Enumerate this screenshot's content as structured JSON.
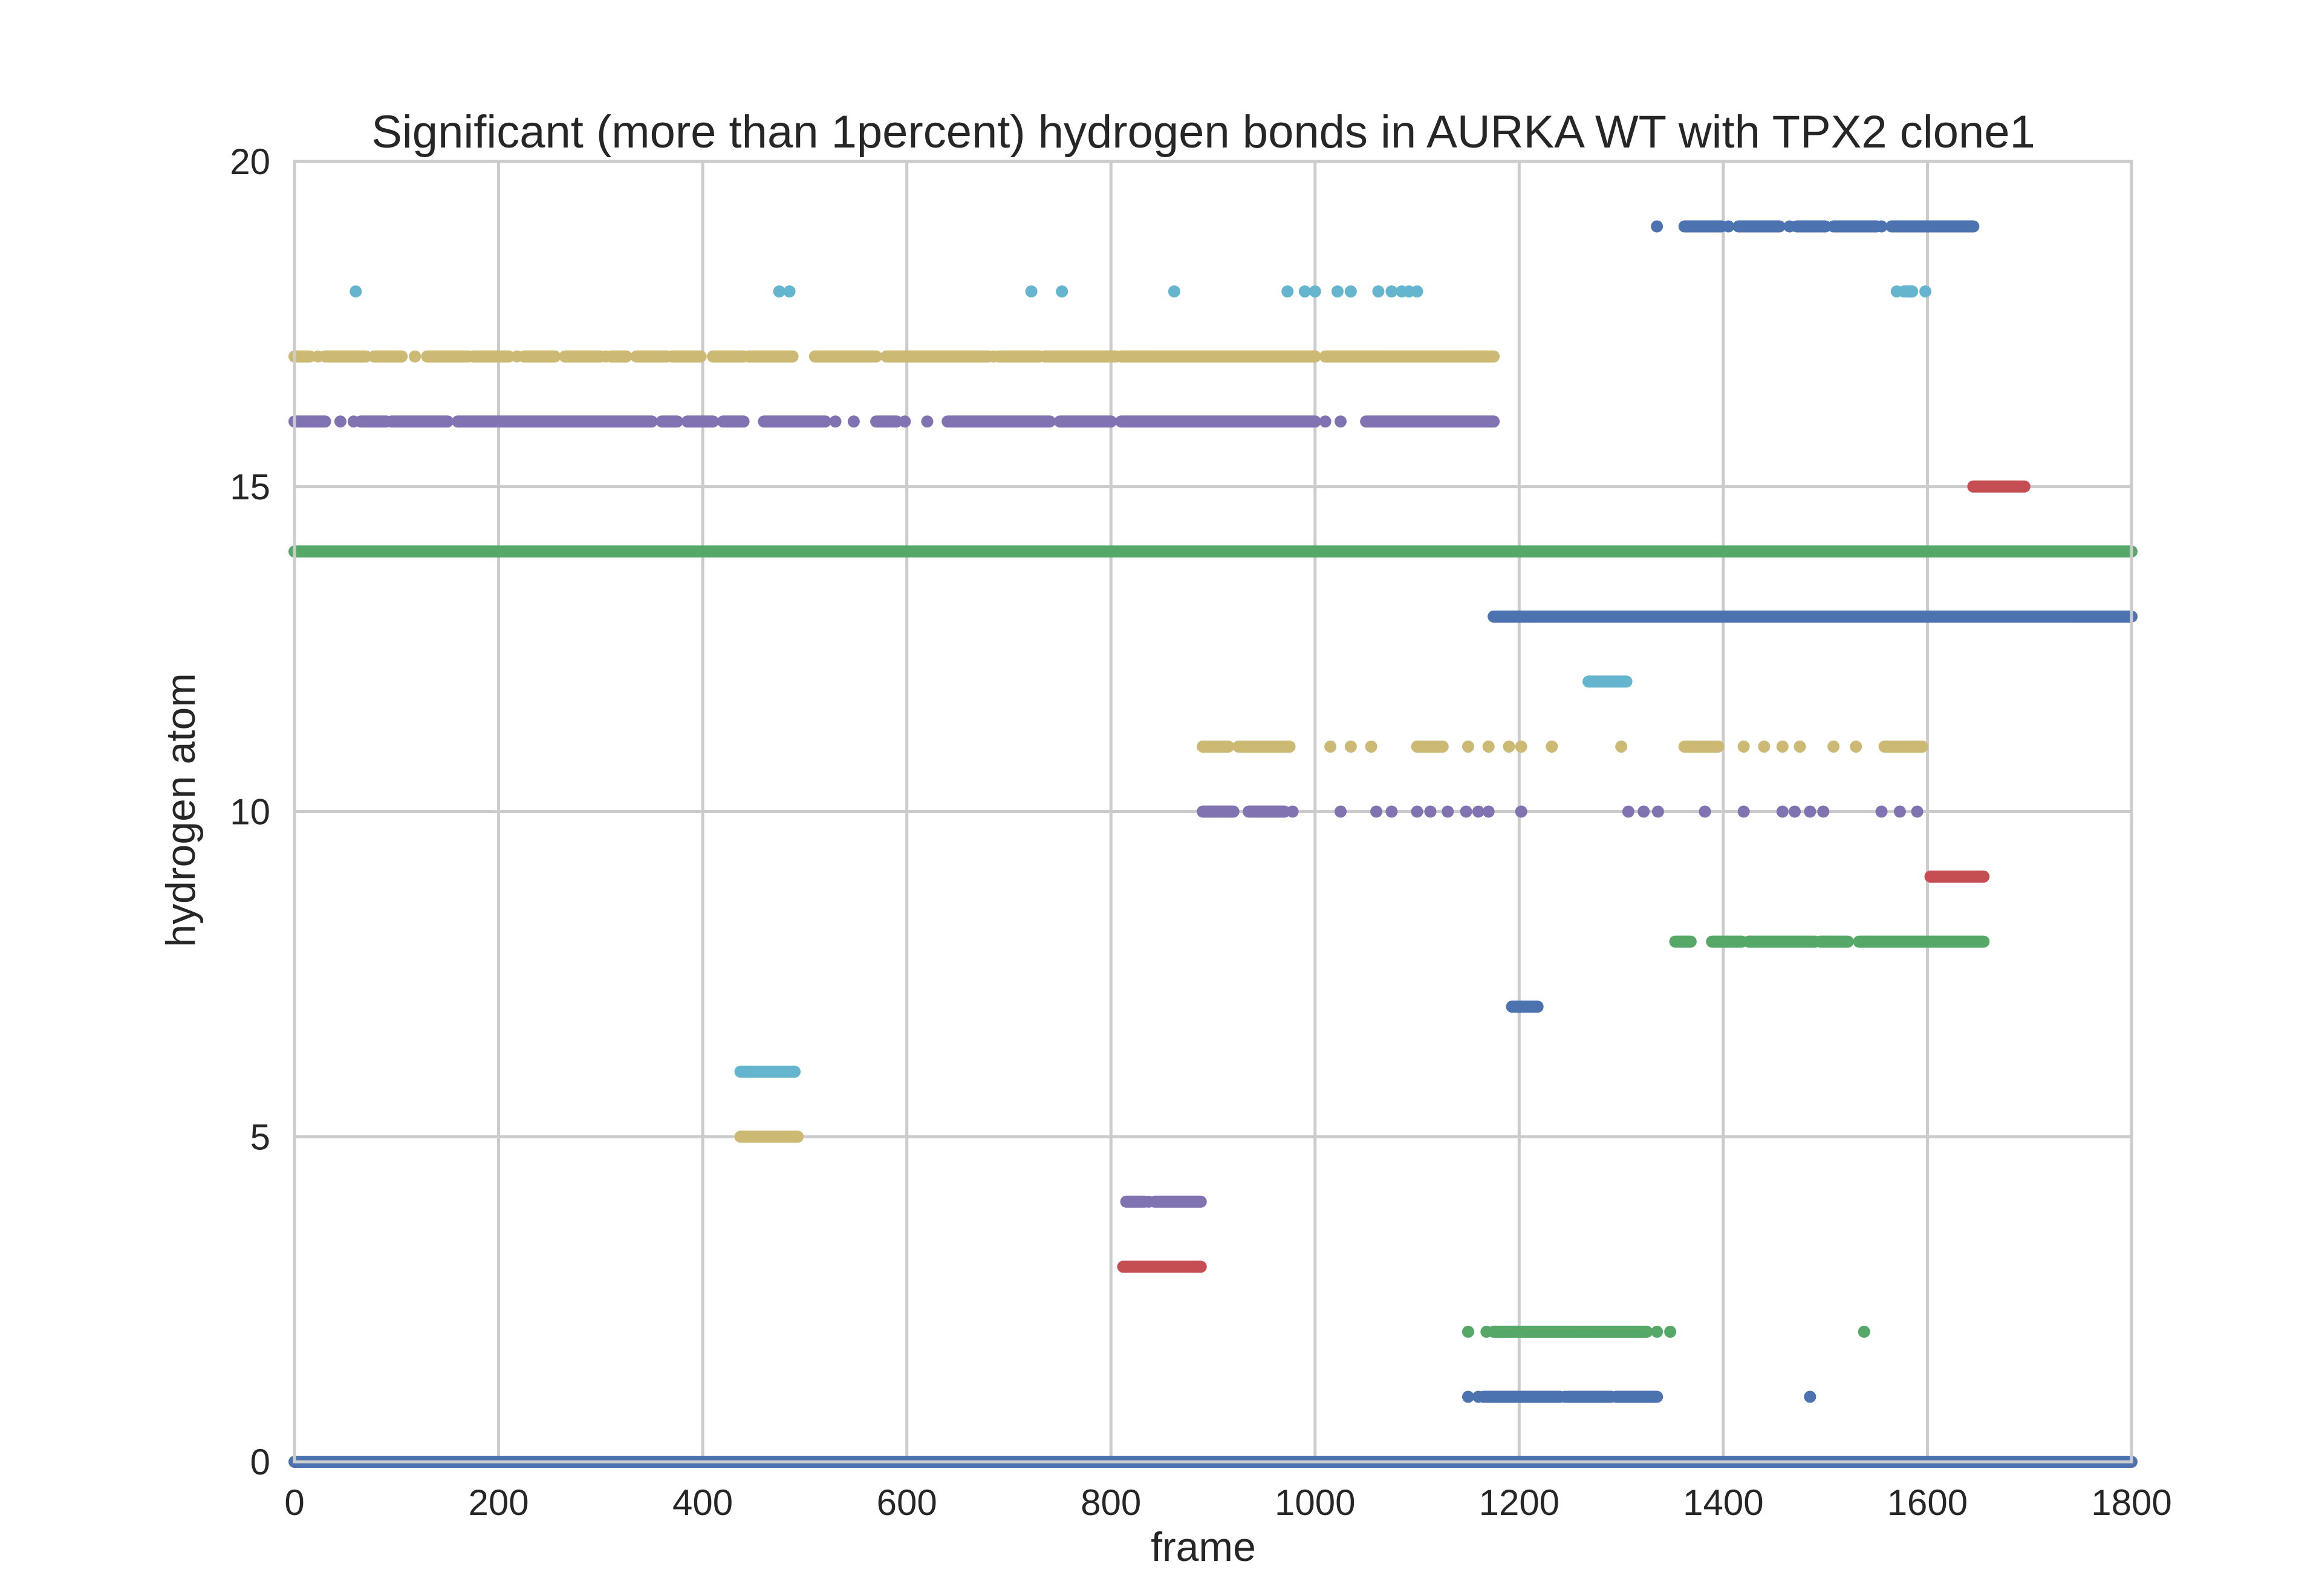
{
  "chart_data": {
    "type": "scatter",
    "title": "Significant (more than 1percent) hydrogen bonds in AURKA WT with TPX2 clone1",
    "xlabel": "frame",
    "ylabel": "hydrogen atom",
    "xlim": [
      0,
      1800
    ],
    "ylim": [
      0,
      20
    ],
    "xticks": [
      0,
      200,
      400,
      600,
      800,
      1000,
      1200,
      1400,
      1600,
      1800
    ],
    "yticks": [
      0,
      5,
      10,
      15,
      20
    ],
    "grid": true,
    "palette": [
      "#4c72b0",
      "#55a868",
      "#c44e52",
      "#8172b2",
      "#ccb974",
      "#64b5cd"
    ],
    "series": [
      {
        "y": 0,
        "color": "#4c72b0",
        "segments": [
          [
            0,
            1800
          ]
        ],
        "points": []
      },
      {
        "y": 1,
        "color": "#4c72b0",
        "segments": [
          [
            1165,
            1240
          ],
          [
            1248,
            1290
          ],
          [
            1295,
            1335
          ]
        ],
        "points": [
          1150,
          1160,
          1245,
          1485
        ]
      },
      {
        "y": 2,
        "color": "#55a868",
        "segments": [
          [
            1175,
            1260
          ],
          [
            1262,
            1325
          ]
        ],
        "points": [
          1150,
          1168,
          1335,
          1348,
          1538
        ]
      },
      {
        "y": 3,
        "color": "#c44e52",
        "segments": [
          [
            812,
            888
          ]
        ],
        "points": []
      },
      {
        "y": 4,
        "color": "#8172b2",
        "segments": [
          [
            815,
            833
          ],
          [
            843,
            888
          ]
        ],
        "points": [
          837
        ]
      },
      {
        "y": 5,
        "color": "#ccb974",
        "segments": [
          [
            437,
            493
          ]
        ],
        "points": []
      },
      {
        "y": 6,
        "color": "#64b5cd",
        "segments": [
          [
            437,
            490
          ]
        ],
        "points": []
      },
      {
        "y": 7,
        "color": "#4c72b0",
        "segments": [
          [
            1193,
            1218
          ]
        ],
        "points": []
      },
      {
        "y": 8,
        "color": "#55a868",
        "segments": [
          [
            1353,
            1368
          ],
          [
            1389,
            1418
          ],
          [
            1425,
            1490
          ],
          [
            1495,
            1522
          ],
          [
            1533,
            1598
          ],
          [
            1600,
            1655
          ]
        ],
        "points": [
          1425
        ]
      },
      {
        "y": 9,
        "color": "#c44e52",
        "segments": [
          [
            1603,
            1655
          ]
        ],
        "points": []
      },
      {
        "y": 10,
        "color": "#8172b2",
        "segments": [
          [
            890,
            920
          ],
          [
            935,
            970
          ]
        ],
        "points": [
          978,
          1025,
          1060,
          1075,
          1100,
          1113,
          1130,
          1148,
          1160,
          1170,
          1202,
          1307,
          1322,
          1336,
          1382,
          1420,
          1458,
          1470,
          1485,
          1498,
          1555,
          1573,
          1590
        ]
      },
      {
        "y": 11,
        "color": "#ccb974",
        "segments": [
          [
            890,
            915
          ],
          [
            925,
            975
          ],
          [
            1100,
            1125
          ],
          [
            1362,
            1395
          ],
          [
            1558,
            1595
          ]
        ],
        "points": [
          1015,
          1035,
          1055,
          1150,
          1170,
          1190,
          1202,
          1232,
          1300,
          1420,
          1440,
          1458,
          1475,
          1508,
          1530
        ]
      },
      {
        "y": 12,
        "color": "#64b5cd",
        "segments": [
          [
            1268,
            1305
          ]
        ],
        "points": []
      },
      {
        "y": 13,
        "color": "#4c72b0",
        "segments": [
          [
            1175,
            1800
          ]
        ],
        "points": []
      },
      {
        "y": 14,
        "color": "#55a868",
        "segments": [
          [
            0,
            1800
          ]
        ],
        "points": []
      },
      {
        "y": 15,
        "color": "#c44e52",
        "segments": [
          [
            1645,
            1695
          ]
        ],
        "points": []
      },
      {
        "y": 16,
        "color": "#8172b2",
        "segments": [
          [
            0,
            30
          ],
          [
            65,
            90
          ],
          [
            95,
            150
          ],
          [
            160,
            350
          ],
          [
            360,
            375
          ],
          [
            385,
            410
          ],
          [
            420,
            440
          ],
          [
            460,
            520
          ],
          [
            570,
            590
          ],
          [
            640,
            740
          ],
          [
            750,
            800
          ],
          [
            810,
            1000
          ],
          [
            1050,
            1175
          ]
        ],
        "points": [
          45,
          58,
          530,
          548,
          598,
          620,
          1010,
          1025
        ]
      },
      {
        "y": 17,
        "color": "#ccb974",
        "segments": [
          [
            0,
            15
          ],
          [
            30,
            70
          ],
          [
            78,
            105
          ],
          [
            130,
            170
          ],
          [
            175,
            210
          ],
          [
            225,
            255
          ],
          [
            265,
            300
          ],
          [
            310,
            325
          ],
          [
            335,
            365
          ],
          [
            370,
            398
          ],
          [
            410,
            440
          ],
          [
            445,
            488
          ],
          [
            510,
            570
          ],
          [
            580,
            680
          ],
          [
            690,
            730
          ],
          [
            735,
            805
          ],
          [
            810,
            1000
          ],
          [
            1010,
            1175
          ]
        ],
        "points": [
          23,
          118,
          218,
          305,
          685
        ]
      },
      {
        "y": 18,
        "color": "#64b5cd",
        "segments": [
          [
            1577,
            1585
          ]
        ],
        "points": [
          60,
          475,
          485,
          722,
          752,
          862,
          973,
          990,
          1000,
          1022,
          1035,
          1062,
          1075,
          1085,
          1092,
          1100,
          1570,
          1598
        ]
      },
      {
        "y": 19,
        "color": "#4c72b0",
        "segments": [
          [
            1362,
            1398
          ],
          [
            1415,
            1455
          ],
          [
            1472,
            1500
          ],
          [
            1508,
            1550
          ],
          [
            1565,
            1645
          ]
        ],
        "points": [
          1335,
          1405,
          1465,
          1555
        ]
      }
    ]
  }
}
